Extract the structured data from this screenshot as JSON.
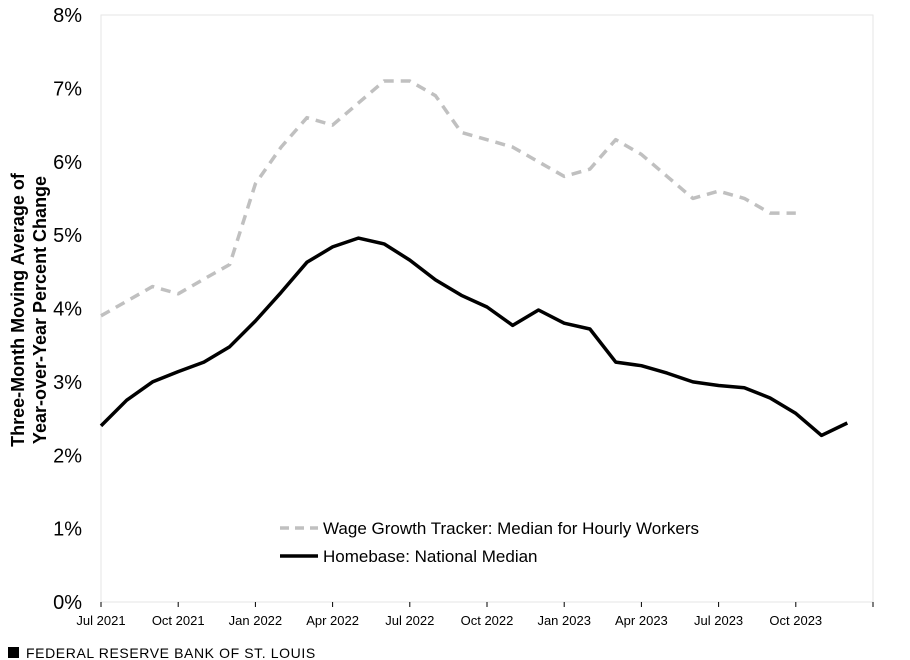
{
  "chart_data": {
    "type": "line",
    "ylabel_lines": [
      "Three-Month Moving Average of",
      "Year-over-Year Percent Change"
    ],
    "xlabel": "",
    "ylim": [
      0,
      8
    ],
    "y_ticks": [
      "0%",
      "1%",
      "2%",
      "3%",
      "4%",
      "5%",
      "6%",
      "7%",
      "8%"
    ],
    "x_range": [
      "2021-07",
      "2024-01"
    ],
    "x_ticks": [
      "Jul 2021",
      "Oct 2021",
      "Jan 2022",
      "Apr 2022",
      "Jul 2022",
      "Oct 2022",
      "Jan 2023",
      "Apr 2023",
      "Jul 2023",
      "Oct 2023"
    ],
    "grid": false,
    "legend_position": "bottom-center",
    "series": [
      {
        "name": "Wage Growth Tracker: Median for Hourly Workers",
        "style": "dashed",
        "color": "#c0c0c0",
        "x": [
          "2021-07",
          "2021-08",
          "2021-09",
          "2021-10",
          "2021-11",
          "2021-12",
          "2022-01",
          "2022-02",
          "2022-03",
          "2022-04",
          "2022-05",
          "2022-06",
          "2022-07",
          "2022-08",
          "2022-09",
          "2022-10",
          "2022-11",
          "2022-12",
          "2023-01",
          "2023-02",
          "2023-03",
          "2023-04",
          "2023-05",
          "2023-06",
          "2023-07",
          "2023-08",
          "2023-09",
          "2023-10"
        ],
        "values": [
          3.9,
          4.1,
          4.3,
          4.2,
          4.4,
          4.6,
          5.7,
          6.2,
          6.6,
          6.5,
          6.8,
          7.1,
          7.1,
          6.9,
          6.4,
          6.3,
          6.2,
          6.0,
          5.8,
          5.9,
          6.3,
          6.1,
          5.8,
          5.5,
          5.6,
          5.5,
          5.3,
          5.3
        ]
      },
      {
        "name": "Homebase: National Median",
        "style": "solid",
        "color": "#000000",
        "x": [
          "2021-07",
          "2021-08",
          "2021-09",
          "2021-10",
          "2021-11",
          "2021-12",
          "2022-01",
          "2022-02",
          "2022-03",
          "2022-04",
          "2022-05",
          "2022-06",
          "2022-07",
          "2022-08",
          "2022-09",
          "2022-10",
          "2022-11",
          "2022-12",
          "2023-01",
          "2023-02",
          "2023-03",
          "2023-04",
          "2023-05",
          "2023-06",
          "2023-07",
          "2023-08",
          "2023-09",
          "2023-10",
          "2023-11",
          "2023-12"
        ],
        "values": [
          2.4,
          2.75,
          3.0,
          3.14,
          3.27,
          3.48,
          3.83,
          4.22,
          4.63,
          4.84,
          4.96,
          4.88,
          4.66,
          4.39,
          4.18,
          4.02,
          3.77,
          3.98,
          3.8,
          3.72,
          3.27,
          3.22,
          3.12,
          3.0,
          2.95,
          2.92,
          2.78,
          2.57,
          2.27,
          2.44
        ]
      }
    ]
  },
  "footer": {
    "text": "FEDERAL RESERVE BANK OF ST. LOUIS"
  }
}
